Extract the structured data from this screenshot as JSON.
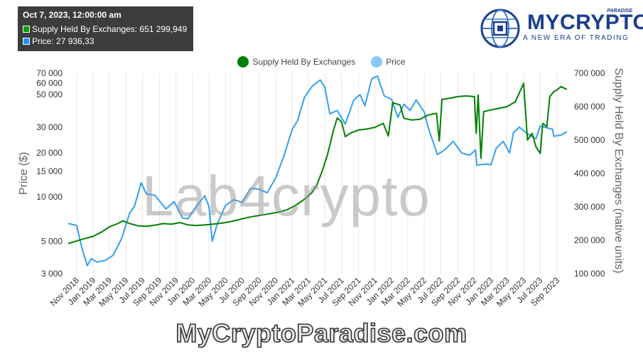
{
  "tooltip": {
    "title": "Oct 7, 2023, 12:00:00 am",
    "rows": [
      {
        "label": "Supply Held By Exchanges",
        "value": "651 299,949",
        "color": "#00a000"
      },
      {
        "label": "Price",
        "value": "27 936,33",
        "color": "#1e90ff"
      }
    ]
  },
  "logo": {
    "brand": "MYCRYPTO",
    "tag": "PARADISE",
    "slogan": "A NEW ERA OF TRADING"
  },
  "watermark": "Lab4crypto",
  "footer": "MyCryptoParadise.com",
  "colors": {
    "supply": "#008000",
    "price": "#33a0f0",
    "supply_legend": "#008000",
    "price_legend": "#88c8f8",
    "grid": "#e6e6e6"
  },
  "chart_data": {
    "type": "line",
    "legend": [
      "Supply Held By Exchanges",
      "Price"
    ],
    "legend_position": "top-center",
    "grid": "vertical",
    "y_left": {
      "label": "Price ($)",
      "scale": "log",
      "range": [
        3000,
        70000
      ],
      "ticks": [
        3000,
        5000,
        10000,
        15000,
        20000,
        30000,
        50000,
        60000,
        70000
      ],
      "tick_labels": [
        "3 000",
        "5 000",
        "10 000",
        "15 000",
        "20 000",
        "30 000",
        "50 000",
        "60 000",
        "70 000"
      ]
    },
    "y_right": {
      "label": "Supply Held By Exchanges (native units)",
      "scale": "linear",
      "range": [
        100000,
        700000
      ],
      "ticks": [
        100000,
        200000,
        300000,
        400000,
        500000,
        600000,
        700000
      ],
      "tick_labels": [
        "100 000",
        "200 000",
        "300 000",
        "400 000",
        "500 000",
        "600 000",
        "700 000"
      ]
    },
    "x_range": [
      "2018-10-01",
      "2023-10-15"
    ],
    "x_ticks": [
      "Nov 2018",
      "Jan 2019",
      "Mar 2019",
      "May 2019",
      "Jul 2019",
      "Sep 2019",
      "Nov 2019",
      "Jan 2020",
      "Mar 2020",
      "May 2020",
      "Jul 2020",
      "Sep 2020",
      "Nov 2020",
      "Jan 2021",
      "Mar 2021",
      "May 2021",
      "Jul 2021",
      "Sep 2021",
      "Nov 2021",
      "Jan 2022",
      "Mar 2022",
      "May 2022",
      "Jul 2022",
      "Sep 2022",
      "Nov 2022",
      "Jan 2023",
      "Mar 2023",
      "May 2023",
      "Jul 2023",
      "Sep 2023"
    ],
    "series": [
      {
        "name": "Price",
        "axis": "left",
        "points": [
          [
            "2018-10-01",
            6600
          ],
          [
            "2018-11-01",
            6400
          ],
          [
            "2018-11-20",
            4500
          ],
          [
            "2018-12-10",
            3400
          ],
          [
            "2018-12-25",
            3800
          ],
          [
            "2019-01-15",
            3600
          ],
          [
            "2019-02-15",
            3700
          ],
          [
            "2019-03-15",
            4000
          ],
          [
            "2019-04-15",
            5200
          ],
          [
            "2019-05-15",
            7800
          ],
          [
            "2019-06-01",
            8600
          ],
          [
            "2019-06-26",
            12500
          ],
          [
            "2019-07-15",
            10500
          ],
          [
            "2019-08-15",
            10300
          ],
          [
            "2019-09-25",
            8300
          ],
          [
            "2019-10-25",
            9300
          ],
          [
            "2019-11-25",
            7200
          ],
          [
            "2019-12-15",
            7100
          ],
          [
            "2020-01-15",
            8700
          ],
          [
            "2020-02-15",
            10200
          ],
          [
            "2020-03-01",
            8600
          ],
          [
            "2020-03-13",
            5000
          ],
          [
            "2020-04-01",
            6600
          ],
          [
            "2020-05-01",
            8800
          ],
          [
            "2020-06-01",
            9600
          ],
          [
            "2020-07-01",
            9200
          ],
          [
            "2020-08-01",
            11500
          ],
          [
            "2020-09-01",
            11300
          ],
          [
            "2020-10-01",
            10700
          ],
          [
            "2020-11-01",
            13500
          ],
          [
            "2020-12-01",
            19000
          ],
          [
            "2021-01-01",
            29000
          ],
          [
            "2021-01-20",
            33000
          ],
          [
            "2021-02-15",
            48000
          ],
          [
            "2021-03-15",
            57000
          ],
          [
            "2021-04-14",
            63000
          ],
          [
            "2021-05-01",
            56000
          ],
          [
            "2021-05-19",
            37000
          ],
          [
            "2021-06-15",
            39000
          ],
          [
            "2021-07-15",
            31500
          ],
          [
            "2021-08-15",
            46000
          ],
          [
            "2021-09-07",
            50000
          ],
          [
            "2021-09-25",
            42000
          ],
          [
            "2021-10-20",
            64000
          ],
          [
            "2021-11-10",
            67000
          ],
          [
            "2021-12-05",
            49000
          ],
          [
            "2022-01-01",
            46500
          ],
          [
            "2022-01-24",
            35000
          ],
          [
            "2022-02-15",
            43000
          ],
          [
            "2022-03-10",
            39000
          ],
          [
            "2022-04-01",
            46000
          ],
          [
            "2022-05-01",
            38000
          ],
          [
            "2022-05-15",
            30000
          ],
          [
            "2022-06-18",
            19500
          ],
          [
            "2022-07-15",
            21000
          ],
          [
            "2022-08-15",
            24000
          ],
          [
            "2022-09-15",
            20000
          ],
          [
            "2022-10-15",
            19300
          ],
          [
            "2022-11-05",
            21000
          ],
          [
            "2022-11-10",
            16500
          ],
          [
            "2022-12-15",
            16800
          ],
          [
            "2023-01-01",
            16600
          ],
          [
            "2023-01-20",
            21500
          ],
          [
            "2023-02-15",
            24000
          ],
          [
            "2023-03-10",
            20000
          ],
          [
            "2023-03-25",
            27500
          ],
          [
            "2023-04-15",
            30000
          ],
          [
            "2023-05-15",
            27000
          ],
          [
            "2023-06-15",
            25000
          ],
          [
            "2023-07-01",
            30500
          ],
          [
            "2023-07-15",
            30000
          ],
          [
            "2023-08-15",
            29000
          ],
          [
            "2023-08-20",
            26000
          ],
          [
            "2023-09-15",
            26500
          ],
          [
            "2023-10-07",
            27936
          ]
        ]
      },
      {
        "name": "Supply Held By Exchanges",
        "axis": "right",
        "points": [
          [
            "2018-10-01",
            190000
          ],
          [
            "2018-11-01",
            198000
          ],
          [
            "2018-12-01",
            205000
          ],
          [
            "2019-01-01",
            212000
          ],
          [
            "2019-02-01",
            225000
          ],
          [
            "2019-03-01",
            240000
          ],
          [
            "2019-04-01",
            250000
          ],
          [
            "2019-04-20",
            258000
          ],
          [
            "2019-05-15",
            250000
          ],
          [
            "2019-06-15",
            243000
          ],
          [
            "2019-07-15",
            242000
          ],
          [
            "2019-08-15",
            245000
          ],
          [
            "2019-09-15",
            250000
          ],
          [
            "2019-10-15",
            248000
          ],
          [
            "2019-11-15",
            253000
          ],
          [
            "2019-12-15",
            246000
          ],
          [
            "2020-01-15",
            244000
          ],
          [
            "2020-02-15",
            246000
          ],
          [
            "2020-03-15",
            248000
          ],
          [
            "2020-04-15",
            251000
          ],
          [
            "2020-05-15",
            255000
          ],
          [
            "2020-06-15",
            261000
          ],
          [
            "2020-07-15",
            267000
          ],
          [
            "2020-08-15",
            272000
          ],
          [
            "2020-09-15",
            276000
          ],
          [
            "2020-10-15",
            280000
          ],
          [
            "2020-11-15",
            285000
          ],
          [
            "2020-12-15",
            292000
          ],
          [
            "2021-01-15",
            305000
          ],
          [
            "2021-02-15",
            323000
          ],
          [
            "2021-03-15",
            343000
          ],
          [
            "2021-04-01",
            365000
          ],
          [
            "2021-04-20",
            405000
          ],
          [
            "2021-05-10",
            455000
          ],
          [
            "2021-06-01",
            528000
          ],
          [
            "2021-06-15",
            566000
          ],
          [
            "2021-07-01",
            555000
          ],
          [
            "2021-07-15",
            510000
          ],
          [
            "2021-08-01",
            520000
          ],
          [
            "2021-09-01",
            530000
          ],
          [
            "2021-10-01",
            533000
          ],
          [
            "2021-11-01",
            538000
          ],
          [
            "2021-12-01",
            550000
          ],
          [
            "2021-12-20",
            512000
          ],
          [
            "2022-01-05",
            612000
          ],
          [
            "2022-02-01",
            605000
          ],
          [
            "2022-02-15",
            565000
          ],
          [
            "2022-03-15",
            560000
          ],
          [
            "2022-04-15",
            562000
          ],
          [
            "2022-05-15",
            575000
          ],
          [
            "2022-06-15",
            580000
          ],
          [
            "2022-06-25",
            497000
          ],
          [
            "2022-07-05",
            622000
          ],
          [
            "2022-08-01",
            625000
          ],
          [
            "2022-09-01",
            630000
          ],
          [
            "2022-10-01",
            632000
          ],
          [
            "2022-11-01",
            630000
          ],
          [
            "2022-11-08",
            520000
          ],
          [
            "2022-11-15",
            635000
          ],
          [
            "2022-11-25",
            445000
          ],
          [
            "2022-12-05",
            585000
          ],
          [
            "2023-01-01",
            590000
          ],
          [
            "2023-02-01",
            595000
          ],
          [
            "2023-03-01",
            600000
          ],
          [
            "2023-04-01",
            615000
          ],
          [
            "2023-04-20",
            650000
          ],
          [
            "2023-05-01",
            670000
          ],
          [
            "2023-05-15",
            500000
          ],
          [
            "2023-06-01",
            520000
          ],
          [
            "2023-06-15",
            480000
          ],
          [
            "2023-07-01",
            460000
          ],
          [
            "2023-07-10",
            550000
          ],
          [
            "2023-07-25",
            540000
          ],
          [
            "2023-08-05",
            630000
          ],
          [
            "2023-08-20",
            645000
          ],
          [
            "2023-09-01",
            650000
          ],
          [
            "2023-09-15",
            660000
          ],
          [
            "2023-10-07",
            651300
          ]
        ]
      }
    ]
  }
}
